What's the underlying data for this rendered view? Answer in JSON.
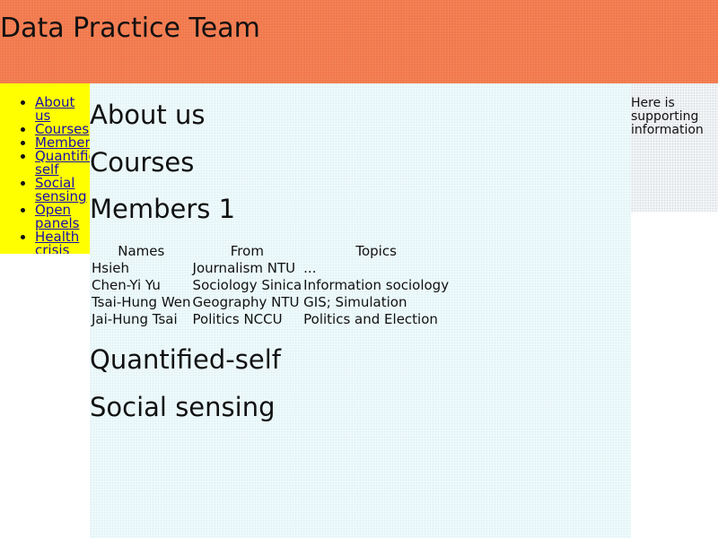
{
  "header": {
    "title": "Data Practice Team"
  },
  "sidebar": {
    "items": [
      {
        "label": "About us"
      },
      {
        "label": "Courses"
      },
      {
        "label": "Members"
      },
      {
        "label": "Quantified-self"
      },
      {
        "label": "Social sensing"
      },
      {
        "label": "Open panels"
      },
      {
        "label": "Health crisis"
      }
    ]
  },
  "main": {
    "sections": {
      "about": "About us",
      "courses": "Courses",
      "members": "Members 1",
      "quantified": "Quantified-self",
      "social": "Social sensing"
    },
    "table": {
      "headers": [
        "Names",
        "From",
        "Topics"
      ],
      "rows": [
        [
          "Hsieh",
          "Journalism NTU",
          "..."
        ],
        [
          "Chen-Yi Yu",
          "Sociology Sinica",
          "Information sociology"
        ],
        [
          "Tsai-Hung Wen",
          "Geography NTU",
          "GIS; Simulation"
        ],
        [
          "Jai-Hung Tsai",
          "Politics NCCU",
          "Politics and Election"
        ]
      ]
    }
  },
  "aside": {
    "text": "Here is supporting information"
  },
  "colors": {
    "header_bg": "#f2784b",
    "sidebar_bg": "#ffff00",
    "main_bg": "#eefafc",
    "link": "#1a0dab"
  }
}
